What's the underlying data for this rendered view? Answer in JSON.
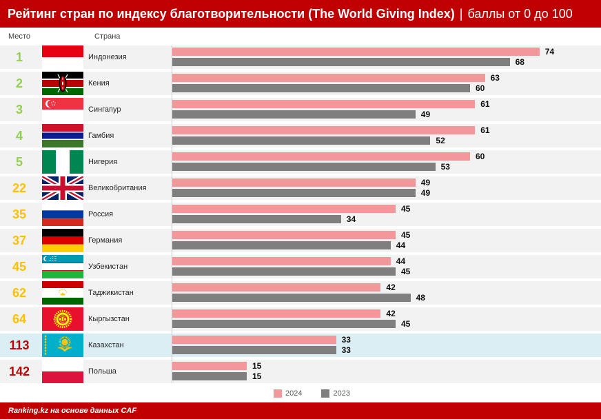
{
  "header": {
    "separator": "|"
  },
  "columns": {
    "rank": "Место",
    "country": "Страна"
  },
  "chart_data": {
    "type": "bar",
    "orientation": "horizontal",
    "title": "Рейтинг стран по индексу благотворительности (The World Giving Index)",
    "subtitle": "баллы от 0 до 100",
    "categories": [
      "Индонезия",
      "Кения",
      "Сингапур",
      "Гамбия",
      "Нигерия",
      "Великобритания",
      "Россия",
      "Германия",
      "Узбекистан",
      "Таджикистан",
      "Кыргызстан",
      "Казахстан",
      "Польша"
    ],
    "ranks": [
      1,
      2,
      3,
      4,
      5,
      22,
      35,
      37,
      45,
      62,
      64,
      113,
      142
    ],
    "rank_colors": [
      "#92d050",
      "#92d050",
      "#92d050",
      "#92d050",
      "#92d050",
      "#ffc000",
      "#ffc000",
      "#ffc000",
      "#ffc000",
      "#ffc000",
      "#ffc000",
      "#c00000",
      "#c00000"
    ],
    "flag_icons": [
      "flag-indonesia-icon",
      "flag-kenya-icon",
      "flag-singapore-icon",
      "flag-gambia-icon",
      "flag-nigeria-icon",
      "flag-uk-icon",
      "flag-russia-icon",
      "flag-germany-icon",
      "flag-uzbekistan-icon",
      "flag-tajikistan-icon",
      "flag-kyrgyzstan-icon",
      "flag-kazakhstan-icon",
      "flag-poland-icon"
    ],
    "highlight": [
      false,
      false,
      false,
      false,
      false,
      false,
      false,
      false,
      false,
      false,
      false,
      true,
      false
    ],
    "series": [
      {
        "name": "2024",
        "color": "#f4979a",
        "values": [
          74,
          63,
          61,
          61,
          60,
          49,
          45,
          45,
          44,
          42,
          42,
          33,
          15
        ]
      },
      {
        "name": "2023",
        "color": "#7f7f7f",
        "values": [
          68,
          60,
          49,
          52,
          53,
          49,
          34,
          44,
          45,
          48,
          45,
          33,
          15
        ]
      }
    ],
    "legend_position": "bottom",
    "grid": false
  },
  "footer": {
    "source": "Ranking.kz на основе данных CAF"
  },
  "colors": {
    "header": "#c00000",
    "footer": "#c00000",
    "row": "#f2f2f2",
    "highlight_row": "#daeef3"
  }
}
